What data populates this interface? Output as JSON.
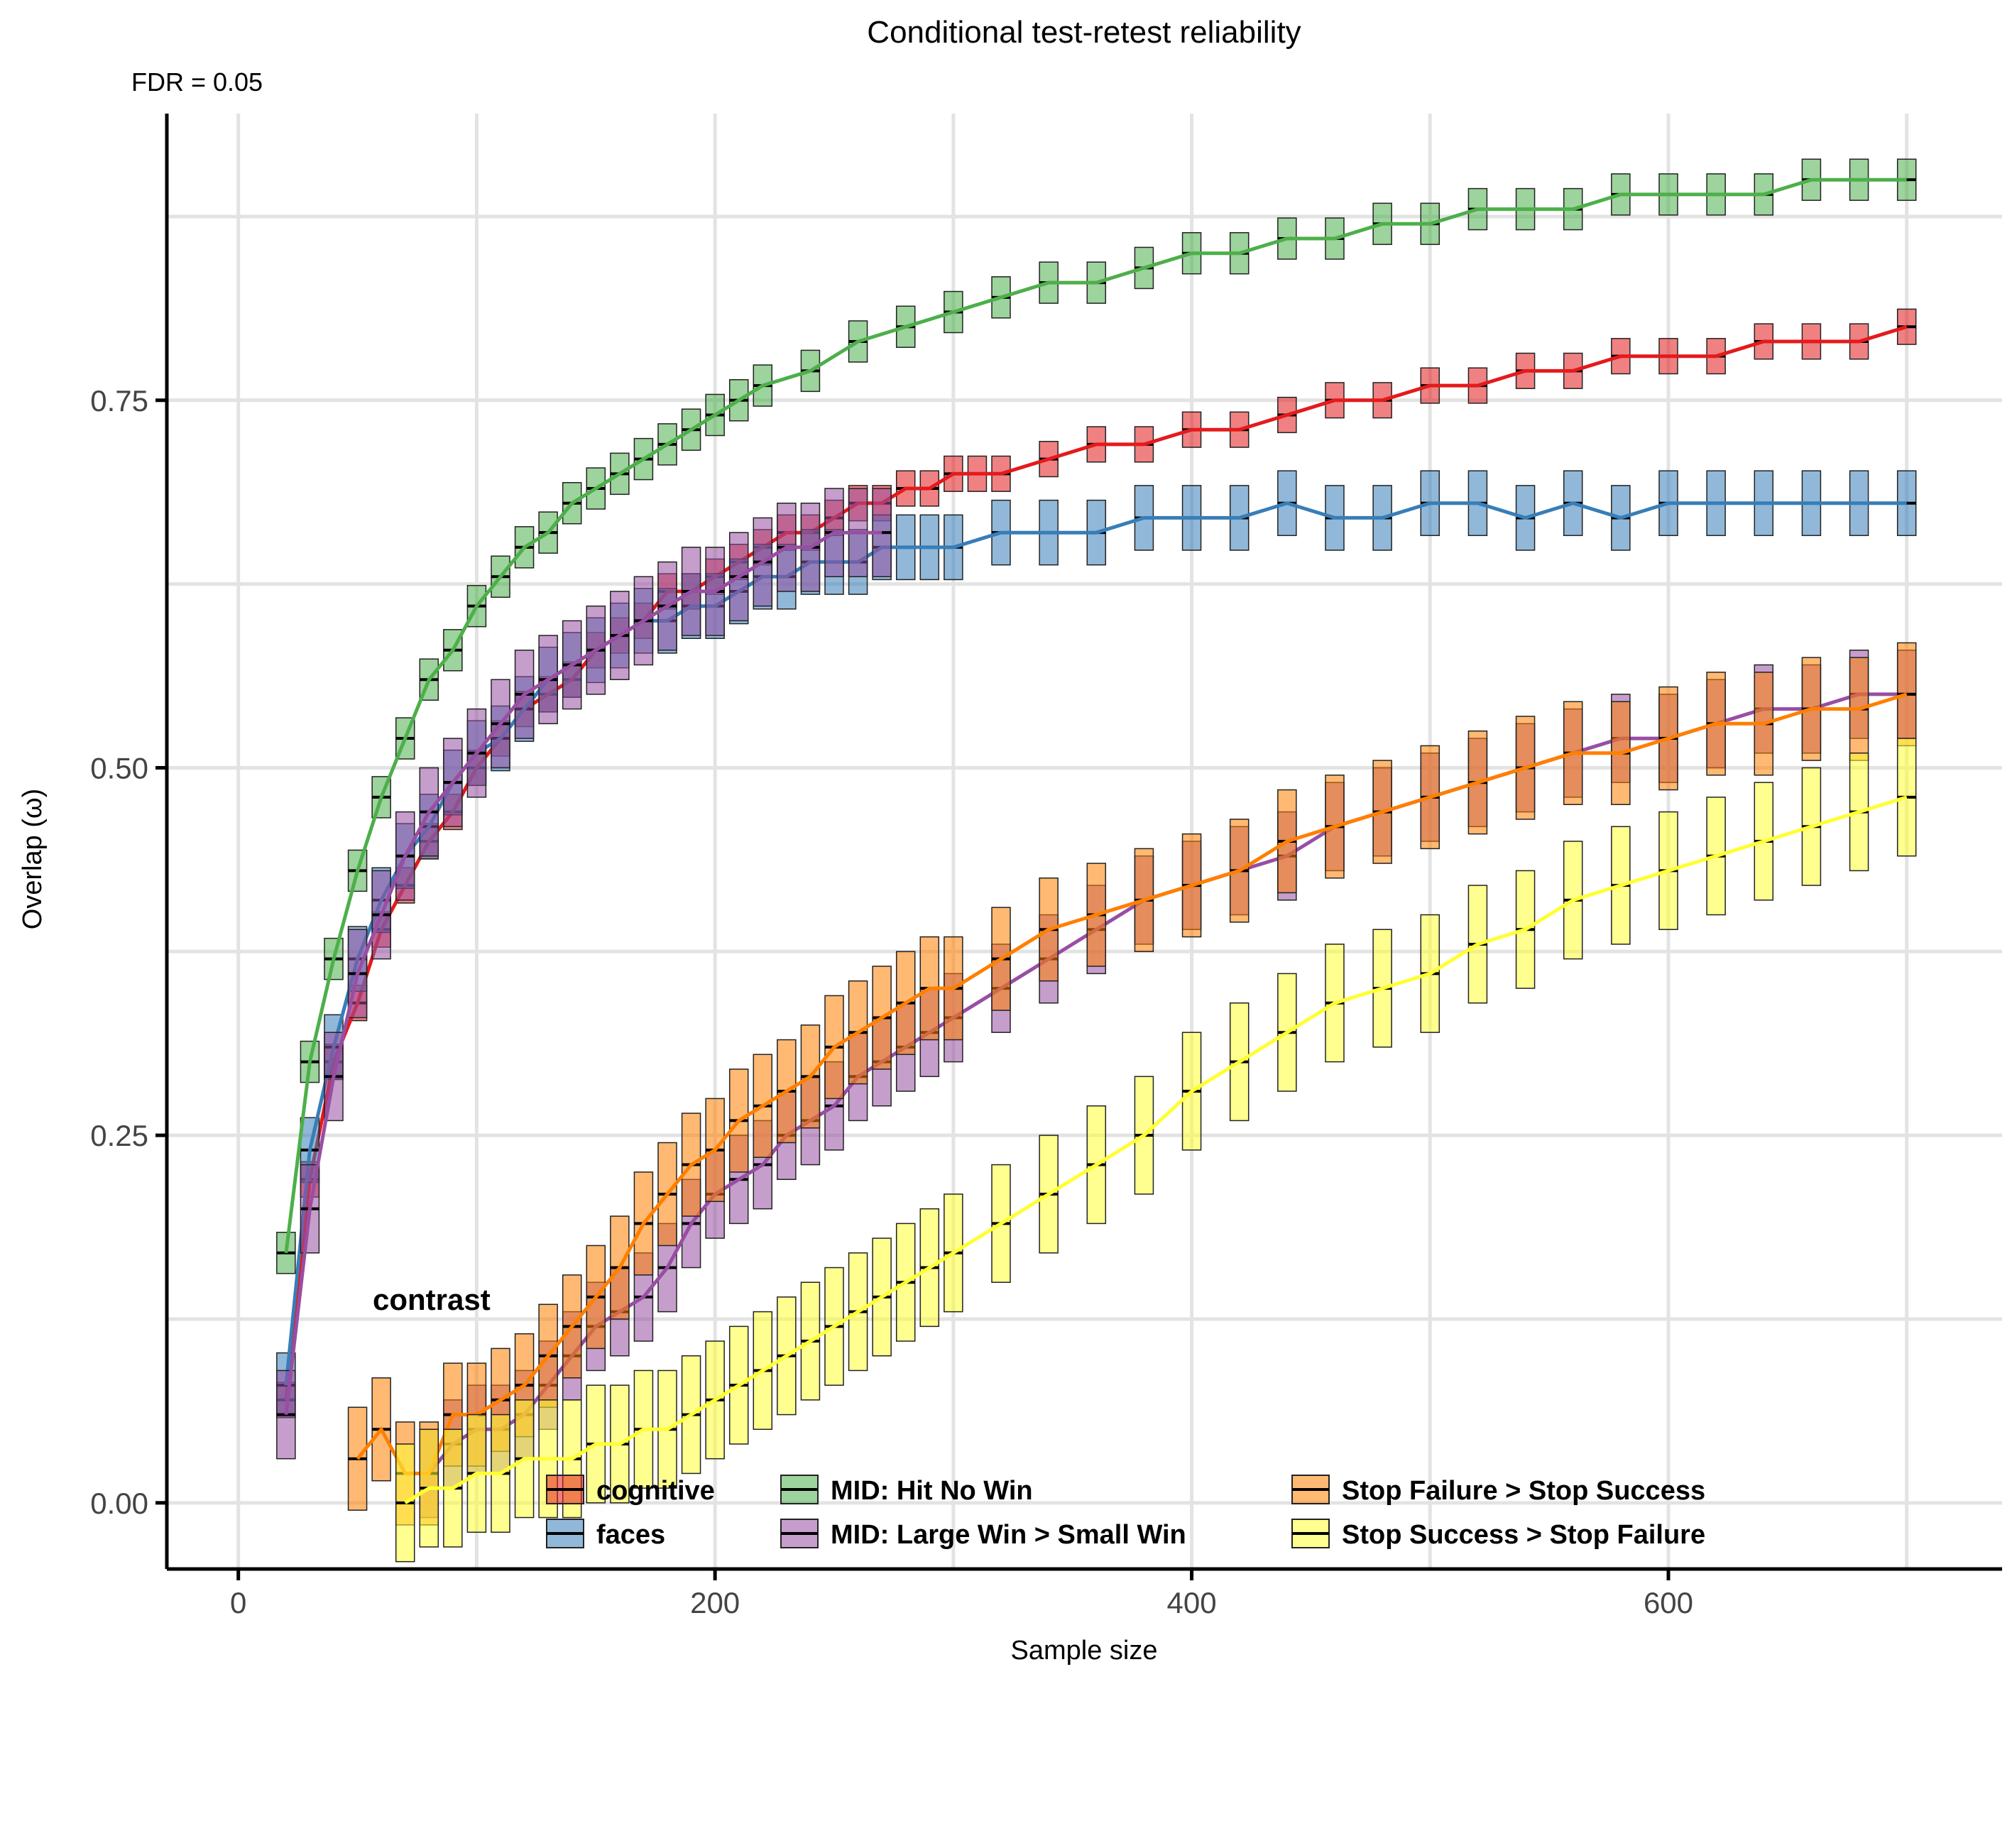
{
  "chart_data": {
    "type": "line",
    "title": "Conditional test-retest reliability",
    "subtitle": "FDR = 0.05",
    "xlabel": "Sample size",
    "ylabel": "Overlap  (ω)",
    "xlim": [
      -30,
      740
    ],
    "ylim": [
      -0.045,
      0.945
    ],
    "x_ticks": [
      0,
      200,
      400,
      600
    ],
    "x_tick_labels": [
      "0",
      "200",
      "400",
      "600"
    ],
    "y_ticks": [
      0,
      0.25,
      0.5,
      0.75
    ],
    "y_tick_labels": [
      "0.00",
      "0.25",
      "0.50",
      "0.75"
    ],
    "x_minor_grid": [
      100,
      300,
      500,
      700
    ],
    "y_minor_grid": [
      0.125,
      0.375,
      0.625,
      0.875
    ],
    "grid": true,
    "error_bars": "interquartile boxes around median at each sample size",
    "legend": {
      "title": "contrast",
      "position": "bottom",
      "entries": [
        "cognitive",
        "faces",
        "MID: Hit No Win",
        "MID: Large Win > Small Win",
        "Stop Failure > Stop Success",
        "Stop Success > Stop Failure"
      ]
    },
    "series": [
      {
        "name": "cognitive",
        "color": "#E41A1C",
        "points": [
          [
            20,
            0.07
          ],
          [
            30,
            0.22
          ],
          [
            40,
            0.3
          ],
          [
            50,
            0.34
          ],
          [
            60,
            0.39
          ],
          [
            70,
            0.42
          ],
          [
            80,
            0.45
          ],
          [
            90,
            0.47
          ],
          [
            100,
            0.5
          ],
          [
            110,
            0.52
          ],
          [
            120,
            0.54
          ],
          [
            130,
            0.55
          ],
          [
            140,
            0.56
          ],
          [
            150,
            0.58
          ],
          [
            160,
            0.59
          ],
          [
            170,
            0.6
          ],
          [
            180,
            0.62
          ],
          [
            190,
            0.62
          ],
          [
            200,
            0.63
          ],
          [
            210,
            0.64
          ],
          [
            220,
            0.65
          ],
          [
            230,
            0.66
          ],
          [
            240,
            0.66
          ],
          [
            250,
            0.67
          ],
          [
            260,
            0.68
          ],
          [
            270,
            0.68
          ],
          [
            280,
            0.69
          ],
          [
            290,
            0.69
          ],
          [
            300,
            0.7
          ],
          [
            310,
            0.7
          ],
          [
            320,
            0.7
          ],
          [
            340,
            0.71
          ],
          [
            360,
            0.72
          ],
          [
            380,
            0.72
          ],
          [
            400,
            0.73
          ],
          [
            420,
            0.73
          ],
          [
            440,
            0.74
          ],
          [
            460,
            0.75
          ],
          [
            480,
            0.75
          ],
          [
            500,
            0.76
          ],
          [
            520,
            0.76
          ],
          [
            540,
            0.77
          ],
          [
            560,
            0.77
          ],
          [
            580,
            0.78
          ],
          [
            600,
            0.78
          ],
          [
            620,
            0.78
          ],
          [
            640,
            0.79
          ],
          [
            660,
            0.79
          ],
          [
            680,
            0.79
          ],
          [
            700,
            0.8
          ]
        ],
        "box_halfwidth": 0.012
      },
      {
        "name": "faces",
        "color": "#377EB8",
        "points": [
          [
            20,
            0.08
          ],
          [
            30,
            0.24
          ],
          [
            40,
            0.31
          ],
          [
            50,
            0.37
          ],
          [
            60,
            0.41
          ],
          [
            70,
            0.44
          ],
          [
            80,
            0.46
          ],
          [
            90,
            0.49
          ],
          [
            100,
            0.51
          ],
          [
            110,
            0.52
          ],
          [
            120,
            0.54
          ],
          [
            130,
            0.56
          ],
          [
            140,
            0.57
          ],
          [
            150,
            0.58
          ],
          [
            160,
            0.59
          ],
          [
            170,
            0.6
          ],
          [
            180,
            0.6
          ],
          [
            190,
            0.61
          ],
          [
            200,
            0.61
          ],
          [
            210,
            0.62
          ],
          [
            220,
            0.63
          ],
          [
            230,
            0.63
          ],
          [
            240,
            0.64
          ],
          [
            250,
            0.64
          ],
          [
            260,
            0.64
          ],
          [
            270,
            0.65
          ],
          [
            280,
            0.65
          ],
          [
            290,
            0.65
          ],
          [
            300,
            0.65
          ],
          [
            320,
            0.66
          ],
          [
            340,
            0.66
          ],
          [
            360,
            0.66
          ],
          [
            380,
            0.67
          ],
          [
            400,
            0.67
          ],
          [
            420,
            0.67
          ],
          [
            440,
            0.68
          ],
          [
            460,
            0.67
          ],
          [
            480,
            0.67
          ],
          [
            500,
            0.68
          ],
          [
            520,
            0.68
          ],
          [
            540,
            0.67
          ],
          [
            560,
            0.68
          ],
          [
            580,
            0.67
          ],
          [
            600,
            0.68
          ],
          [
            620,
            0.68
          ],
          [
            640,
            0.68
          ],
          [
            660,
            0.68
          ],
          [
            680,
            0.68
          ],
          [
            700,
            0.68
          ]
        ],
        "box_halfwidth": 0.022
      },
      {
        "name": "MID: Hit No Win",
        "color": "#4DAF4A",
        "points": [
          [
            20,
            0.17
          ],
          [
            30,
            0.3
          ],
          [
            40,
            0.37
          ],
          [
            50,
            0.43
          ],
          [
            60,
            0.48
          ],
          [
            70,
            0.52
          ],
          [
            80,
            0.56
          ],
          [
            90,
            0.58
          ],
          [
            100,
            0.61
          ],
          [
            110,
            0.63
          ],
          [
            120,
            0.65
          ],
          [
            130,
            0.66
          ],
          [
            140,
            0.68
          ],
          [
            150,
            0.69
          ],
          [
            160,
            0.7
          ],
          [
            170,
            0.71
          ],
          [
            180,
            0.72
          ],
          [
            190,
            0.73
          ],
          [
            200,
            0.74
          ],
          [
            210,
            0.75
          ],
          [
            220,
            0.76
          ],
          [
            240,
            0.77
          ],
          [
            260,
            0.79
          ],
          [
            280,
            0.8
          ],
          [
            300,
            0.81
          ],
          [
            320,
            0.82
          ],
          [
            340,
            0.83
          ],
          [
            360,
            0.83
          ],
          [
            380,
            0.84
          ],
          [
            400,
            0.85
          ],
          [
            420,
            0.85
          ],
          [
            440,
            0.86
          ],
          [
            460,
            0.86
          ],
          [
            480,
            0.87
          ],
          [
            500,
            0.87
          ],
          [
            520,
            0.88
          ],
          [
            540,
            0.88
          ],
          [
            560,
            0.88
          ],
          [
            580,
            0.89
          ],
          [
            600,
            0.89
          ],
          [
            620,
            0.89
          ],
          [
            640,
            0.89
          ],
          [
            660,
            0.9
          ],
          [
            680,
            0.9
          ],
          [
            700,
            0.9
          ]
        ],
        "box_halfwidth": 0.014
      },
      {
        "name": "MID: Large Win > Small Win",
        "color": "#984EA3",
        "points": [
          [
            20,
            0.06
          ],
          [
            30,
            0.2
          ],
          [
            40,
            0.29
          ],
          [
            50,
            0.36
          ],
          [
            60,
            0.4
          ],
          [
            70,
            0.44
          ],
          [
            80,
            0.47
          ],
          [
            90,
            0.49
          ],
          [
            100,
            0.51
          ],
          [
            110,
            0.53
          ],
          [
            120,
            0.55
          ],
          [
            130,
            0.56
          ],
          [
            140,
            0.57
          ],
          [
            150,
            0.58
          ],
          [
            160,
            0.59
          ],
          [
            170,
            0.6
          ],
          [
            180,
            0.61
          ],
          [
            190,
            0.62
          ],
          [
            200,
            0.62
          ],
          [
            210,
            0.63
          ],
          [
            220,
            0.64
          ],
          [
            230,
            0.65
          ],
          [
            240,
            0.65
          ],
          [
            250,
            0.66
          ],
          [
            260,
            0.66
          ],
          [
            270,
            0.66
          ],
          [
            80.001,
            0.02
          ],
          [
            90,
            0.04
          ],
          [
            100,
            0.05
          ],
          [
            110,
            0.05
          ],
          [
            120,
            0.06
          ],
          [
            130,
            0.08
          ],
          [
            140,
            0.1
          ],
          [
            150,
            0.12
          ],
          [
            160,
            0.13
          ],
          [
            170,
            0.14
          ],
          [
            180,
            0.16
          ],
          [
            190,
            0.19
          ],
          [
            200,
            0.21
          ],
          [
            210,
            0.22
          ],
          [
            220,
            0.23
          ],
          [
            230,
            0.25
          ],
          [
            240,
            0.26
          ],
          [
            250,
            0.27
          ],
          [
            260,
            0.29
          ],
          [
            270,
            0.3
          ],
          [
            280,
            0.31
          ],
          [
            290,
            0.32
          ],
          [
            300,
            0.33
          ],
          [
            320,
            0.35
          ],
          [
            340,
            0.37
          ],
          [
            360,
            0.39
          ],
          [
            380,
            0.41
          ],
          [
            400,
            0.42
          ],
          [
            420,
            0.43
          ],
          [
            440,
            0.44
          ],
          [
            460,
            0.46
          ],
          [
            480,
            0.47
          ],
          [
            500,
            0.48
          ],
          [
            520,
            0.49
          ],
          [
            540,
            0.5
          ],
          [
            560,
            0.51
          ],
          [
            580,
            0.52
          ],
          [
            600,
            0.52
          ],
          [
            620,
            0.53
          ],
          [
            640,
            0.54
          ],
          [
            660,
            0.54
          ],
          [
            680,
            0.55
          ],
          [
            700,
            0.55
          ]
        ],
        "box_halfwidth": 0.03,
        "note_split_index": 26
      },
      {
        "name": "Stop Failure > Stop Success",
        "color": "#FF7F00",
        "points": [
          [
            50,
            0.03
          ],
          [
            60,
            0.05
          ],
          [
            70,
            0.02
          ],
          [
            80,
            0.02
          ],
          [
            90,
            0.06
          ],
          [
            100,
            0.06
          ],
          [
            110,
            0.07
          ],
          [
            120,
            0.08
          ],
          [
            130,
            0.1
          ],
          [
            140,
            0.12
          ],
          [
            150,
            0.14
          ],
          [
            160,
            0.16
          ],
          [
            170,
            0.19
          ],
          [
            180,
            0.21
          ],
          [
            190,
            0.23
          ],
          [
            200,
            0.24
          ],
          [
            210,
            0.26
          ],
          [
            220,
            0.27
          ],
          [
            230,
            0.28
          ],
          [
            240,
            0.29
          ],
          [
            250,
            0.31
          ],
          [
            260,
            0.32
          ],
          [
            270,
            0.33
          ],
          [
            280,
            0.34
          ],
          [
            290,
            0.35
          ],
          [
            300,
            0.35
          ],
          [
            320,
            0.37
          ],
          [
            340,
            0.39
          ],
          [
            360,
            0.4
          ],
          [
            380,
            0.41
          ],
          [
            400,
            0.42
          ],
          [
            420,
            0.43
          ],
          [
            440,
            0.45
          ],
          [
            460,
            0.46
          ],
          [
            480,
            0.47
          ],
          [
            500,
            0.48
          ],
          [
            520,
            0.49
          ],
          [
            540,
            0.5
          ],
          [
            560,
            0.51
          ],
          [
            580,
            0.51
          ],
          [
            600,
            0.52
          ],
          [
            620,
            0.53
          ],
          [
            640,
            0.53
          ],
          [
            660,
            0.54
          ],
          [
            680,
            0.54
          ],
          [
            700,
            0.55
          ]
        ],
        "box_halfwidth": 0.035
      },
      {
        "name": "Stop Success > Stop Failure",
        "color": "#FFFF33",
        "points": [
          [
            70,
            0.0
          ],
          [
            80,
            0.01
          ],
          [
            90,
            0.01
          ],
          [
            100,
            0.02
          ],
          [
            110,
            0.02
          ],
          [
            120,
            0.03
          ],
          [
            130,
            0.03
          ],
          [
            140,
            0.03
          ],
          [
            150,
            0.04
          ],
          [
            160,
            0.04
          ],
          [
            170,
            0.05
          ],
          [
            180,
            0.05
          ],
          [
            190,
            0.06
          ],
          [
            200,
            0.07
          ],
          [
            210,
            0.08
          ],
          [
            220,
            0.09
          ],
          [
            230,
            0.1
          ],
          [
            240,
            0.11
          ],
          [
            250,
            0.12
          ],
          [
            260,
            0.13
          ],
          [
            270,
            0.14
          ],
          [
            280,
            0.15
          ],
          [
            290,
            0.16
          ],
          [
            300,
            0.17
          ],
          [
            320,
            0.19
          ],
          [
            340,
            0.21
          ],
          [
            360,
            0.23
          ],
          [
            380,
            0.25
          ],
          [
            400,
            0.28
          ],
          [
            420,
            0.3
          ],
          [
            440,
            0.32
          ],
          [
            460,
            0.34
          ],
          [
            480,
            0.35
          ],
          [
            500,
            0.36
          ],
          [
            520,
            0.38
          ],
          [
            540,
            0.39
          ],
          [
            560,
            0.41
          ],
          [
            580,
            0.42
          ],
          [
            600,
            0.43
          ],
          [
            620,
            0.44
          ],
          [
            640,
            0.45
          ],
          [
            660,
            0.46
          ],
          [
            680,
            0.47
          ],
          [
            700,
            0.48
          ]
        ],
        "box_halfwidth": 0.04
      }
    ]
  }
}
